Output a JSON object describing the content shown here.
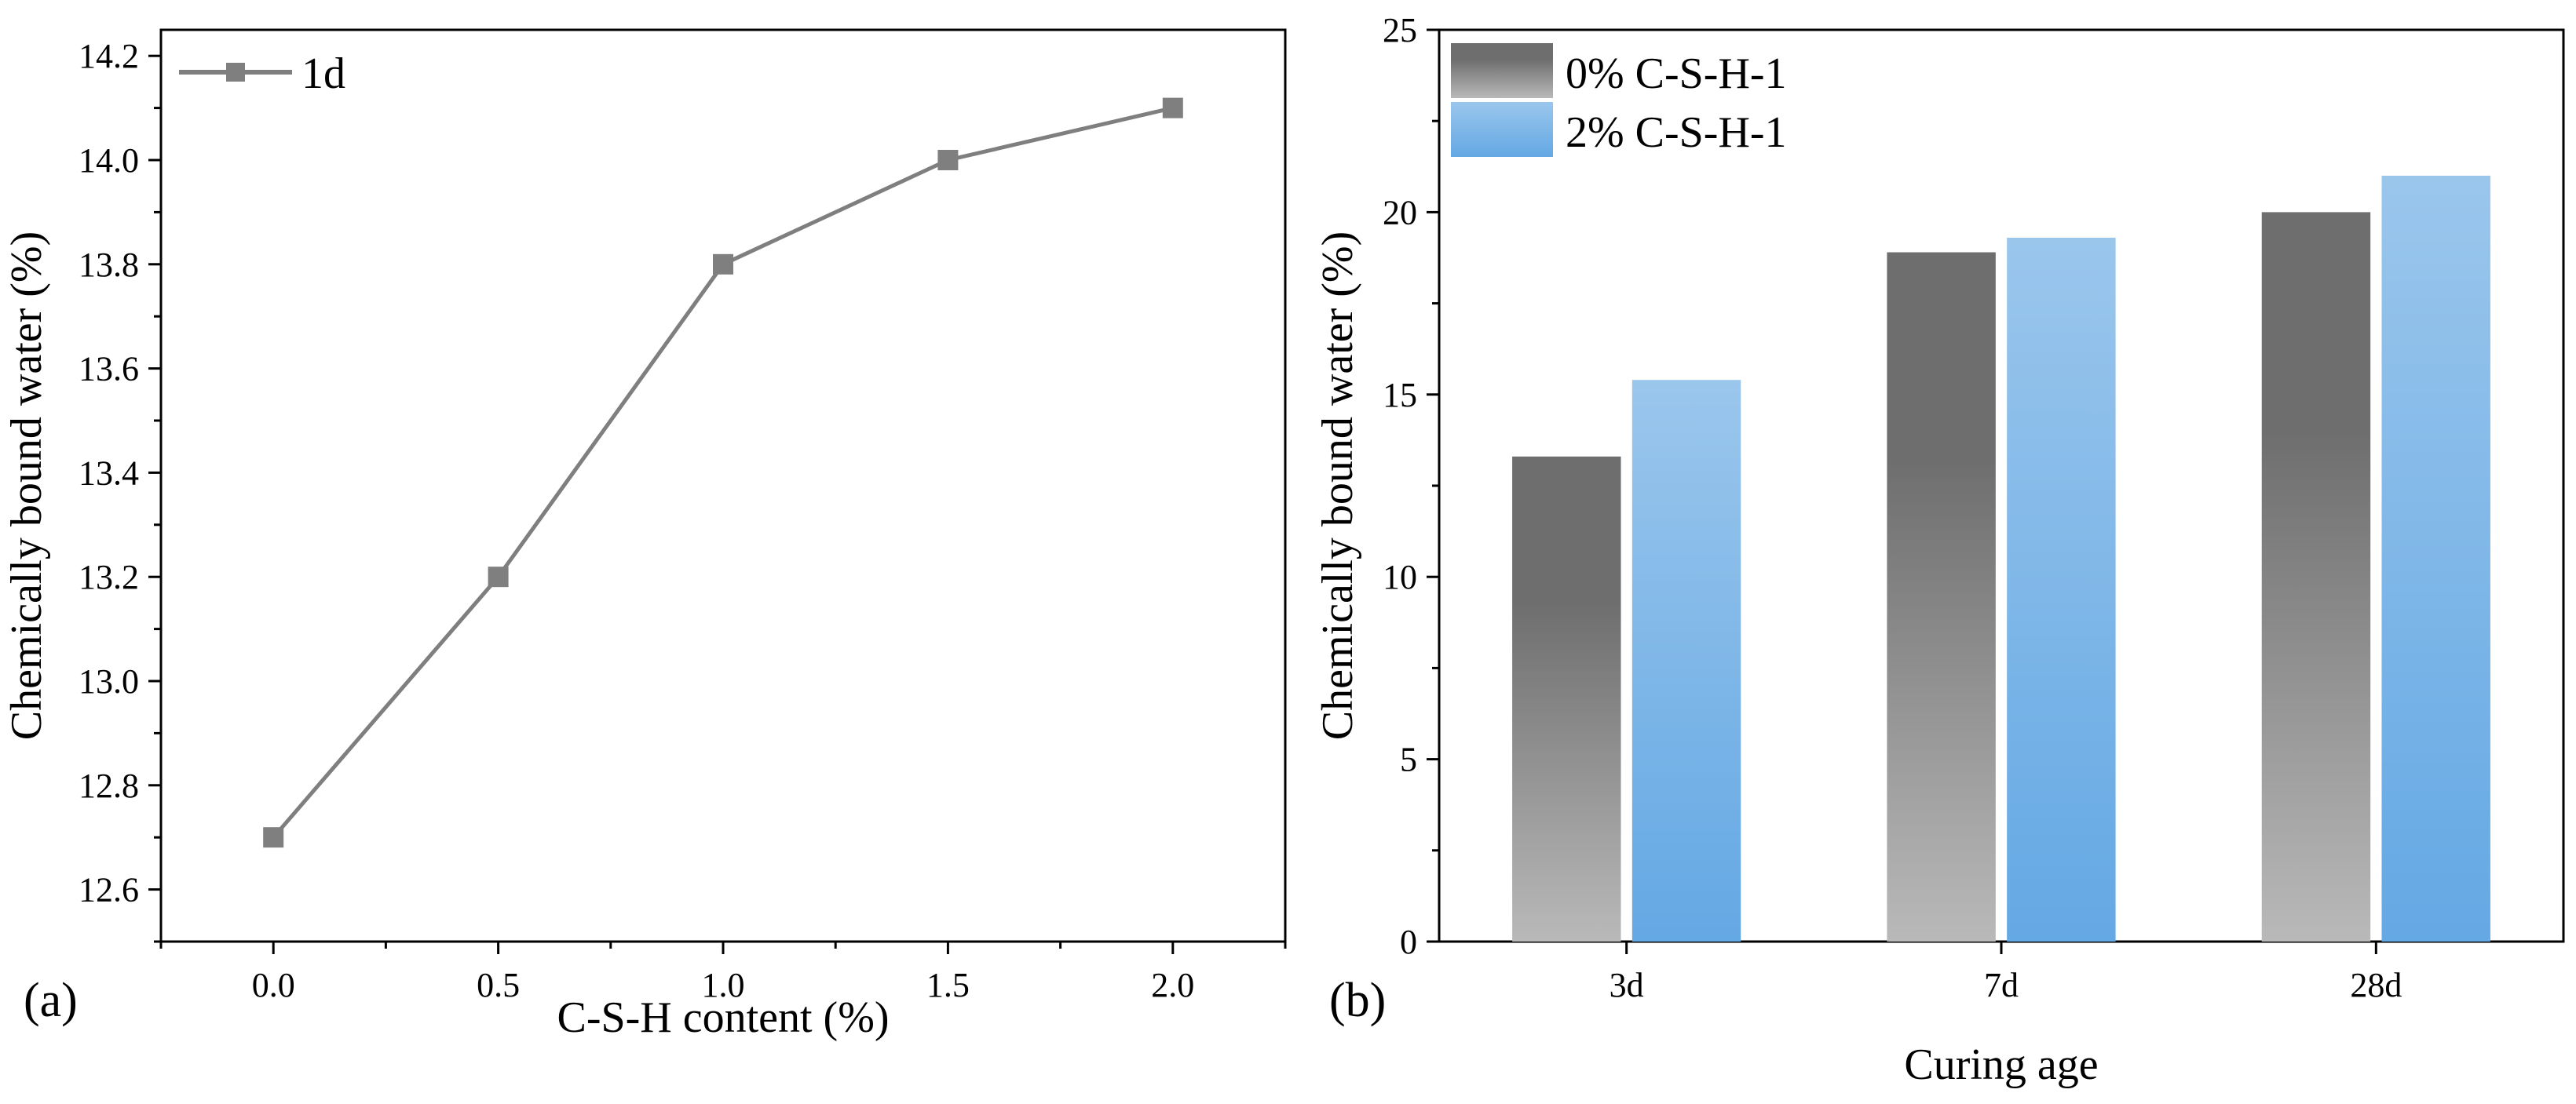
{
  "chart_data": [
    {
      "panel": "(a)",
      "type": "line",
      "xlabel": "C-S-H content (%)",
      "ylabel": "Chemically bound water (%)",
      "xlim": [
        -0.25,
        2.25
      ],
      "ylim": [
        12.5,
        14.25
      ],
      "xticks": [
        0.0,
        0.5,
        1.0,
        1.5,
        2.0
      ],
      "xtick_labels": [
        "0.0",
        "0.5",
        "1.0",
        "1.5",
        "2.0"
      ],
      "yticks": [
        12.6,
        12.8,
        13.0,
        13.2,
        13.4,
        13.6,
        13.8,
        14.0,
        14.2
      ],
      "ytick_labels": [
        "12.6",
        "12.8",
        "13.0",
        "13.2",
        "13.4",
        "13.6",
        "13.8",
        "14.0",
        "14.2"
      ],
      "series": [
        {
          "name": "1d",
          "color": "#7f7f7f",
          "marker": "square",
          "x": [
            0.0,
            0.5,
            1.0,
            1.5,
            2.0
          ],
          "values": [
            12.7,
            13.2,
            13.8,
            14.0,
            14.1
          ]
        }
      ],
      "legend": "top-left"
    },
    {
      "panel": "(b)",
      "type": "bar",
      "xlabel": "Curing age",
      "ylabel": "Chemically bound water (%)",
      "ylim": [
        0,
        25
      ],
      "yticks": [
        0,
        5,
        10,
        15,
        20,
        25
      ],
      "ytick_labels": [
        "0",
        "5",
        "10",
        "15",
        "20",
        "25"
      ],
      "categories": [
        "3d",
        "7d",
        "28d"
      ],
      "series": [
        {
          "name": "0% C-S-H-1",
          "color_top": "#6e6e6e",
          "color_bottom": "#b9b9b9",
          "values": [
            13.3,
            18.9,
            20.0
          ]
        },
        {
          "name": "2% C-S-H-1",
          "color_top": "#9ac6ec",
          "color_bottom": "#64a8e4",
          "values": [
            15.4,
            19.3,
            21.0
          ]
        }
      ],
      "legend": "top-left"
    }
  ]
}
